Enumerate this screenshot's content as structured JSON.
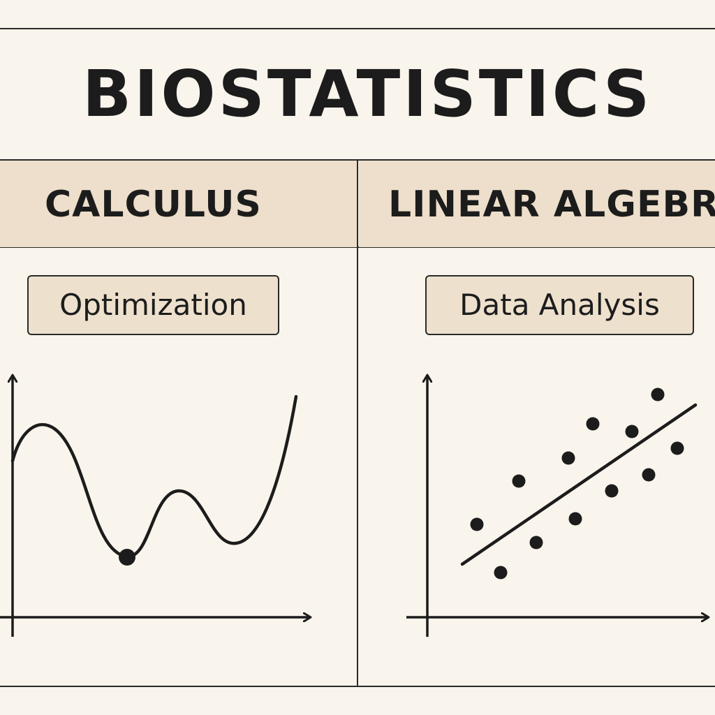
{
  "title": "BIOSTATISTICS",
  "columns": [
    {
      "header": "CALCULUS",
      "tag": "Optimization"
    },
    {
      "header": "LINEAR ALGEBRA",
      "tag": "Data Analysis"
    }
  ],
  "colors": {
    "background": "#f9f4ec",
    "header_band": "#eddfcb",
    "tag_fill": "#ede0cd",
    "ink": "#1c1c1c"
  },
  "icons": {
    "calculus_plot": "curve-with-minimum-point",
    "linear_algebra_plot": "scatter-with-regression-line"
  }
}
